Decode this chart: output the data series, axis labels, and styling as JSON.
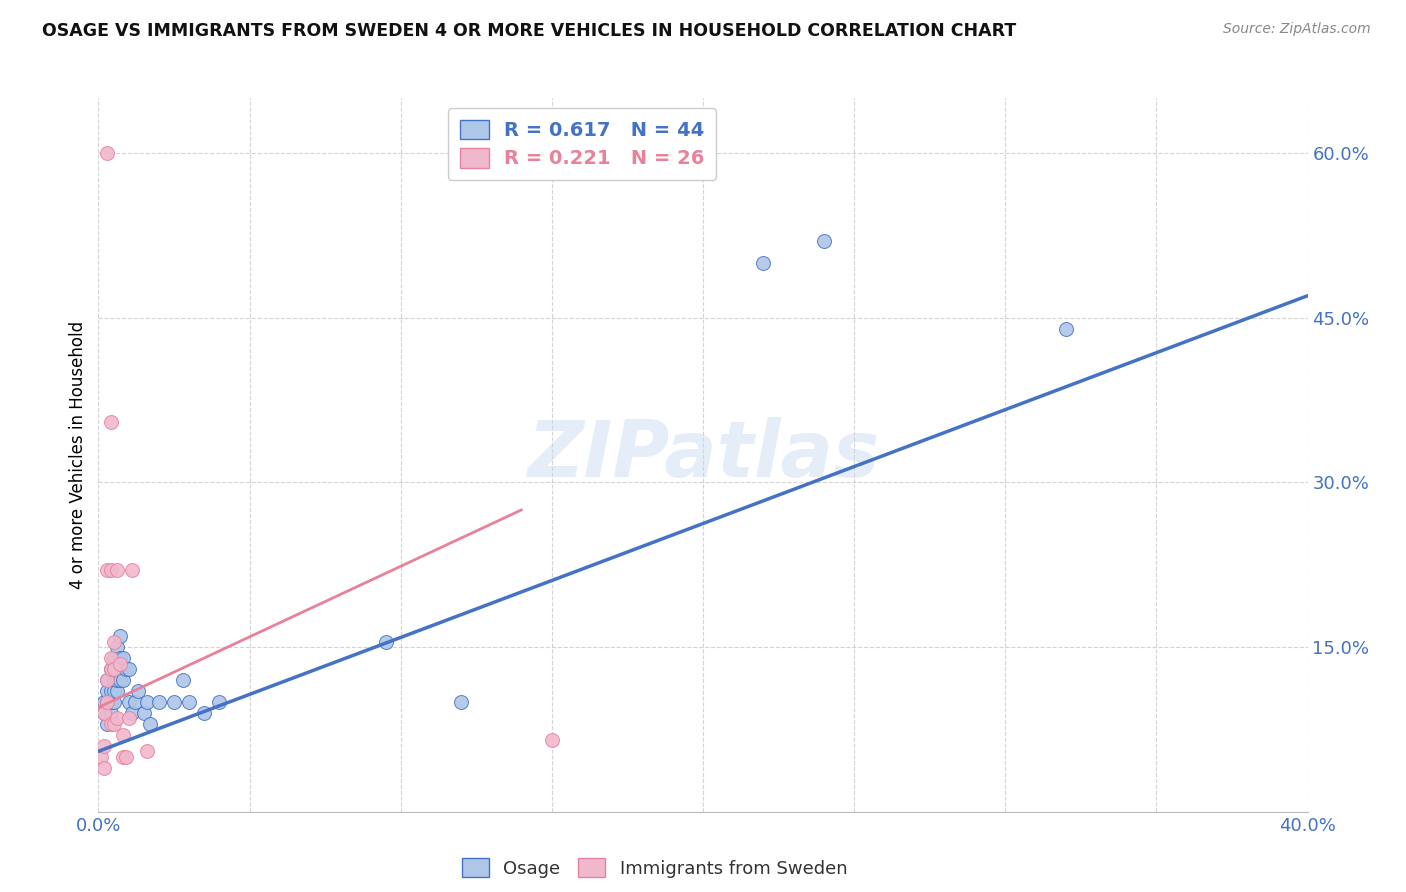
{
  "title": "OSAGE VS IMMIGRANTS FROM SWEDEN 4 OR MORE VEHICLES IN HOUSEHOLD CORRELATION CHART",
  "source": "Source: ZipAtlas.com",
  "ylabel": "4 or more Vehicles in Household",
  "watermark": "ZIPatlas",
  "xlim": [
    0.0,
    0.4
  ],
  "ylim": [
    0.0,
    0.65
  ],
  "xticks": [
    0.0,
    0.05,
    0.1,
    0.15,
    0.2,
    0.25,
    0.3,
    0.35,
    0.4
  ],
  "yticks": [
    0.0,
    0.15,
    0.3,
    0.45,
    0.6
  ],
  "xtick_labels": [
    "0.0%",
    "",
    "",
    "",
    "",
    "",
    "",
    "",
    "40.0%"
  ],
  "ytick_labels": [
    "",
    "15.0%",
    "30.0%",
    "45.0%",
    "60.0%"
  ],
  "legend_blue_r": "0.617",
  "legend_blue_n": "44",
  "legend_pink_r": "0.221",
  "legend_pink_n": "26",
  "legend_label_blue": "Osage",
  "legend_label_pink": "Immigrants from Sweden",
  "blue_color": "#aec6e8",
  "pink_color": "#f0b8cc",
  "blue_line_color": "#4472c4",
  "pink_line_color": "#e8819a",
  "axis_color": "#4472c4",
  "grid_color": "#c8c8c8",
  "blue_scatter": [
    [
      0.002,
      0.09
    ],
    [
      0.002,
      0.1
    ],
    [
      0.003,
      0.08
    ],
    [
      0.003,
      0.1
    ],
    [
      0.003,
      0.11
    ],
    [
      0.003,
      0.12
    ],
    [
      0.004,
      0.09
    ],
    [
      0.004,
      0.1
    ],
    [
      0.004,
      0.11
    ],
    [
      0.004,
      0.13
    ],
    [
      0.005,
      0.1
    ],
    [
      0.005,
      0.11
    ],
    [
      0.005,
      0.12
    ],
    [
      0.005,
      0.13
    ],
    [
      0.005,
      0.14
    ],
    [
      0.006,
      0.11
    ],
    [
      0.006,
      0.12
    ],
    [
      0.006,
      0.13
    ],
    [
      0.006,
      0.15
    ],
    [
      0.007,
      0.12
    ],
    [
      0.007,
      0.14
    ],
    [
      0.007,
      0.16
    ],
    [
      0.008,
      0.12
    ],
    [
      0.008,
      0.14
    ],
    [
      0.009,
      0.13
    ],
    [
      0.01,
      0.1
    ],
    [
      0.01,
      0.13
    ],
    [
      0.011,
      0.09
    ],
    [
      0.012,
      0.1
    ],
    [
      0.013,
      0.11
    ],
    [
      0.015,
      0.09
    ],
    [
      0.016,
      0.1
    ],
    [
      0.017,
      0.08
    ],
    [
      0.02,
      0.1
    ],
    [
      0.025,
      0.1
    ],
    [
      0.028,
      0.12
    ],
    [
      0.03,
      0.1
    ],
    [
      0.035,
      0.09
    ],
    [
      0.04,
      0.1
    ],
    [
      0.095,
      0.155
    ],
    [
      0.12,
      0.1
    ],
    [
      0.22,
      0.5
    ],
    [
      0.24,
      0.52
    ],
    [
      0.32,
      0.44
    ]
  ],
  "pink_scatter": [
    [
      0.001,
      0.05
    ],
    [
      0.002,
      0.04
    ],
    [
      0.002,
      0.06
    ],
    [
      0.002,
      0.09
    ],
    [
      0.003,
      0.1
    ],
    [
      0.003,
      0.12
    ],
    [
      0.003,
      0.22
    ],
    [
      0.003,
      0.6
    ],
    [
      0.004,
      0.08
    ],
    [
      0.004,
      0.13
    ],
    [
      0.004,
      0.14
    ],
    [
      0.004,
      0.22
    ],
    [
      0.004,
      0.355
    ],
    [
      0.005,
      0.08
    ],
    [
      0.005,
      0.13
    ],
    [
      0.005,
      0.155
    ],
    [
      0.006,
      0.085
    ],
    [
      0.006,
      0.22
    ],
    [
      0.007,
      0.135
    ],
    [
      0.008,
      0.05
    ],
    [
      0.008,
      0.07
    ],
    [
      0.009,
      0.05
    ],
    [
      0.01,
      0.085
    ],
    [
      0.011,
      0.22
    ],
    [
      0.016,
      0.055
    ],
    [
      0.15,
      0.065
    ]
  ],
  "blue_line": [
    [
      0.0,
      0.055
    ],
    [
      0.4,
      0.47
    ]
  ],
  "pink_line": [
    [
      0.0,
      0.095
    ],
    [
      0.14,
      0.275
    ]
  ]
}
